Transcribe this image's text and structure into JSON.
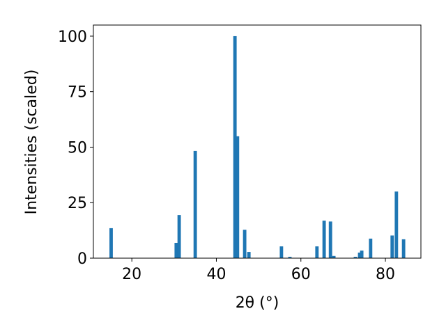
{
  "chart_data": {
    "type": "bar",
    "xlabel": "2θ (°)",
    "ylabel": "Intensities (scaled)",
    "x": [
      15.1,
      30.5,
      31.2,
      35.0,
      44.4,
      45.0,
      46.7,
      47.7,
      55.4,
      57.4,
      63.8,
      65.5,
      67.0,
      67.8,
      72.9,
      73.9,
      74.4,
      76.5,
      81.6,
      82.6,
      84.3
    ],
    "values": [
      13.5,
      6.9,
      19.4,
      48.3,
      100,
      54.9,
      12.8,
      2.8,
      5.3,
      0.6,
      5.3,
      16.9,
      16.5,
      1,
      0.6,
      2.5,
      3.4,
      8.8,
      10.2,
      30,
      8.5
    ],
    "color": "#1f77b4",
    "xlim": [
      10.9,
      88.4
    ],
    "ylim": [
      0,
      105
    ],
    "xticks": [
      20,
      40,
      60,
      80
    ],
    "yticks": [
      0,
      25,
      50,
      75,
      100
    ]
  }
}
